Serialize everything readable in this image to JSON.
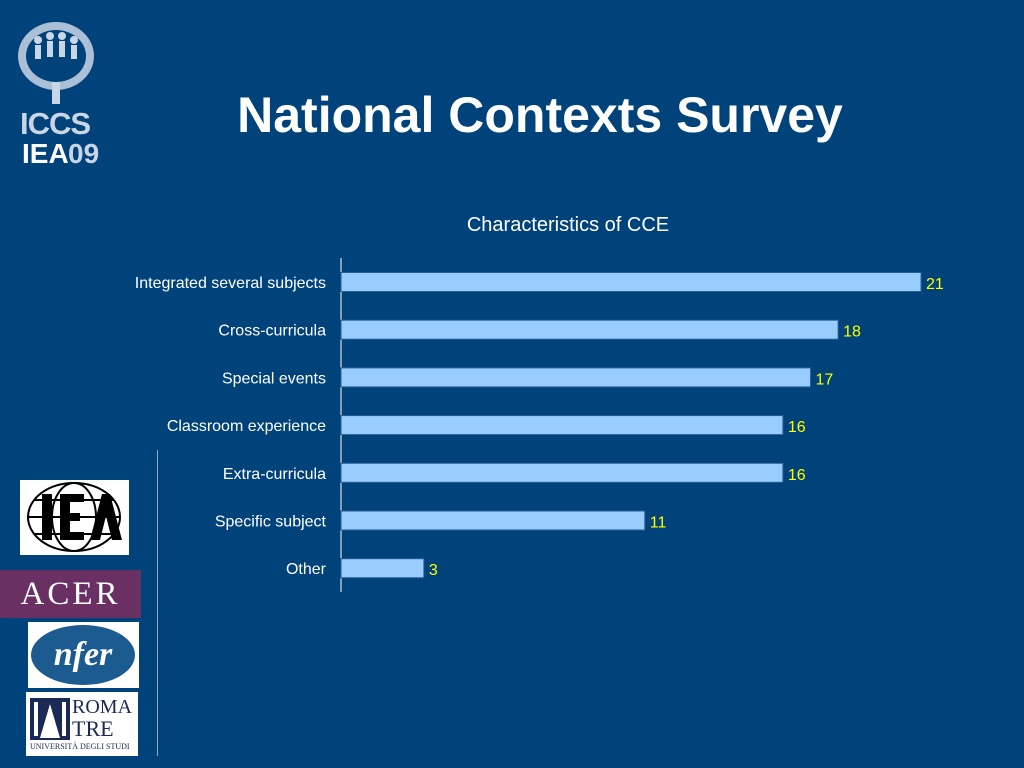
{
  "slide": {
    "title": "National Contexts Survey"
  },
  "logos": {
    "iccs": {
      "line1": "ICCS",
      "line2a": "IEA",
      "line2b": "09"
    },
    "acer": "ACER",
    "nfer": "nfer",
    "roma": {
      "line1": "ROMA",
      "line2": "TRE",
      "line3": "UNIVERSITÀ DEGLI STUDI"
    }
  },
  "colors": {
    "background": "#00427a",
    "bar": "#99ccff",
    "value_label": "#ffff00",
    "text": "#ffffff"
  },
  "chart_data": {
    "type": "bar",
    "orientation": "horizontal",
    "title": "Characteristics of CCE",
    "categories": [
      "Integrated several subjects",
      "Cross-curricula",
      "Special events",
      "Classroom experience",
      "Extra-curricula",
      "Specific subject",
      "Other"
    ],
    "values": [
      21,
      18,
      17,
      16,
      16,
      11,
      3
    ],
    "xlim": [
      0,
      21
    ],
    "grid": false,
    "legend": "none",
    "data_labels": true
  }
}
